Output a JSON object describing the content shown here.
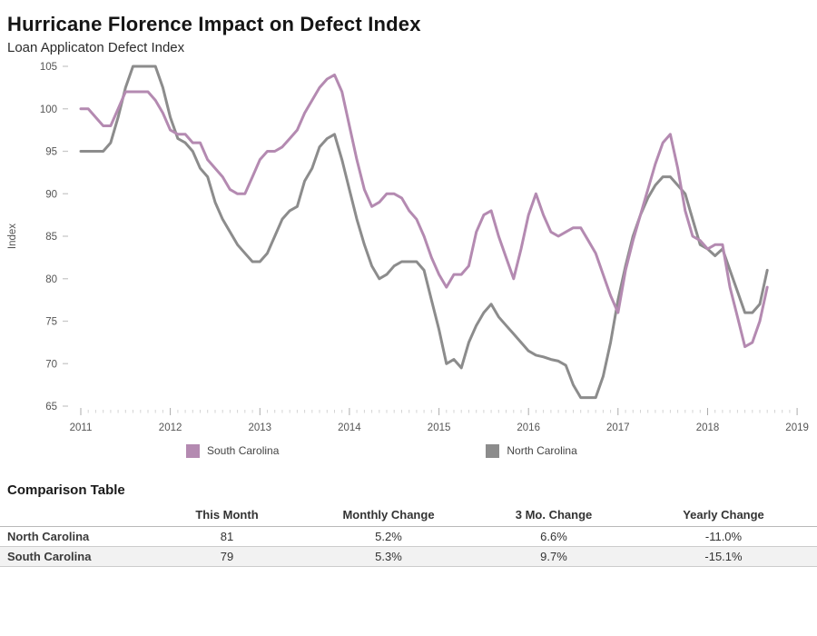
{
  "header": {
    "title": "Hurricane Florence Impact on Defect Index",
    "subtitle": "Loan Applicaton Defect Index"
  },
  "chart_data": {
    "type": "line",
    "title": "Hurricane Florence Impact on Defect Index",
    "subtitle": "Loan Applicaton Defect Index",
    "ylabel": "Index",
    "xlabel": "",
    "ylim": [
      65,
      105
    ],
    "ytick_step": 5,
    "grid": false,
    "legend_position": "bottom",
    "x_unit": "month",
    "x_start": "2011-01",
    "x_end": "2018-09",
    "x_years": [
      2011,
      2012,
      2013,
      2014,
      2015,
      2016,
      2017,
      2018,
      2019
    ],
    "series": [
      {
        "name": "South Carolina",
        "color": "#b48ab1",
        "values": [
          100,
          100,
          99,
          98,
          98,
          100,
          102,
          102,
          102,
          102,
          101,
          99.5,
          97.5,
          97,
          97,
          96,
          96,
          94,
          93,
          92,
          90.5,
          90,
          90,
          92,
          94,
          95,
          95,
          95.5,
          96.5,
          97.5,
          99.5,
          101,
          102.5,
          103.5,
          104,
          102,
          98,
          94,
          90.5,
          88.5,
          89,
          90,
          90,
          89.5,
          88,
          87,
          85,
          82.5,
          80.5,
          79,
          80.5,
          80.5,
          81.5,
          85.5,
          87.5,
          88,
          85,
          82.5,
          80,
          83.5,
          87.5,
          90,
          87.5,
          85.5,
          85,
          85.5,
          86,
          86,
          84.5,
          83,
          80.5,
          78,
          76,
          81,
          84.5,
          87.5,
          90.5,
          93.5,
          96,
          97,
          93,
          88,
          85,
          84.5,
          83.5,
          84,
          84,
          79,
          75.5,
          72,
          72.5,
          75,
          79
        ]
      },
      {
        "name": "North Carolina",
        "color": "#8c8c8c",
        "values": [
          95,
          95,
          95,
          95,
          96,
          99,
          102.5,
          105,
          105,
          105,
          105,
          102.5,
          99,
          96.5,
          96,
          95,
          93,
          92,
          89,
          87,
          85.5,
          84,
          83,
          82,
          82,
          83,
          85,
          87,
          88,
          88.5,
          91.5,
          93,
          95.5,
          96.5,
          97,
          94,
          90.5,
          87,
          84,
          81.5,
          80,
          80.5,
          81.5,
          82,
          82,
          82,
          81,
          77.5,
          74,
          70,
          70.5,
          69.5,
          72.5,
          74.5,
          76,
          77,
          75.5,
          74.5,
          73.5,
          72.5,
          71.5,
          71,
          70.8,
          70.5,
          70.3,
          69.8,
          67.5,
          66,
          66,
          66,
          68.5,
          72.5,
          77.5,
          81.5,
          85,
          87.5,
          89.5,
          91,
          92,
          92,
          91,
          90,
          87,
          84,
          83.5,
          82.7,
          83.5,
          81,
          78.5,
          76,
          76,
          77,
          81
        ]
      }
    ]
  },
  "table": {
    "title": "Comparison Table",
    "columns": [
      "",
      "This Month",
      "Monthly Change",
      "3 Mo. Change",
      "Yearly Change"
    ],
    "rows": [
      {
        "label": "North Carolina",
        "values": [
          "81",
          "5.2%",
          "6.6%",
          "-11.0%"
        ]
      },
      {
        "label": "South Carolina",
        "values": [
          "79",
          "5.3%",
          "9.7%",
          "-15.1%"
        ]
      }
    ]
  }
}
